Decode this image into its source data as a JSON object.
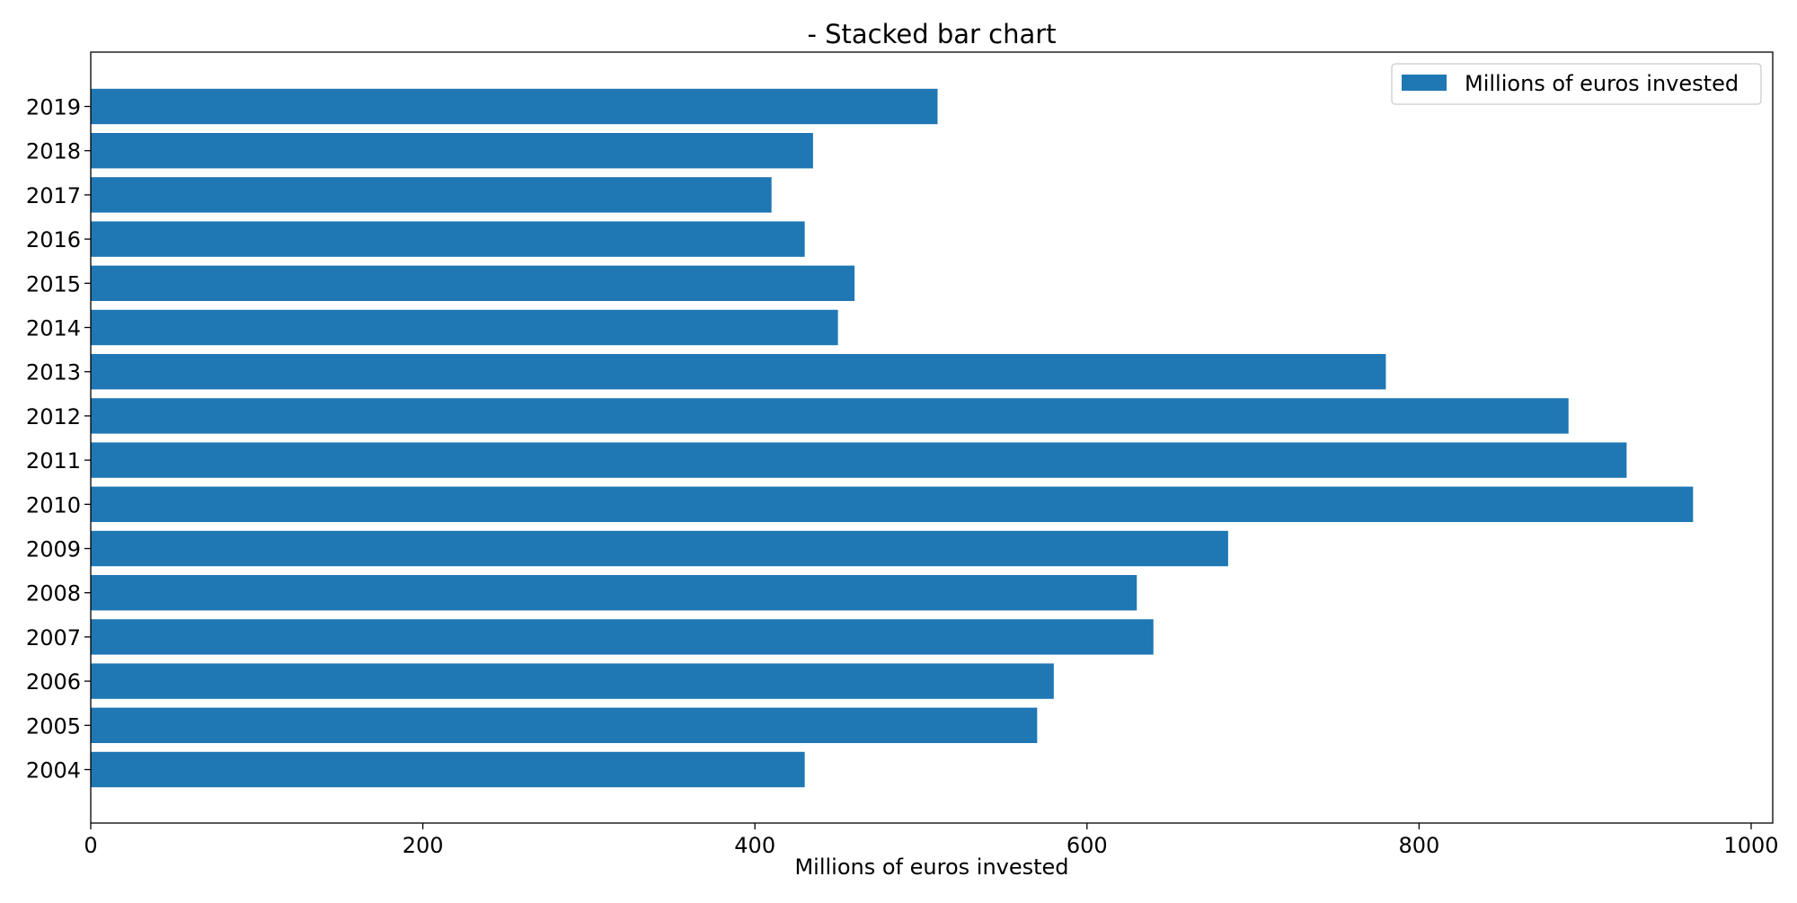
{
  "chart_data": {
    "type": "bar",
    "orientation": "horizontal",
    "title": "- Stacked bar chart",
    "xlabel": "Millions of euros invested",
    "ylabel": "",
    "categories": [
      "2004",
      "2005",
      "2006",
      "2007",
      "2008",
      "2009",
      "2010",
      "2011",
      "2012",
      "2013",
      "2014",
      "2015",
      "2016",
      "2017",
      "2018",
      "2019"
    ],
    "series": [
      {
        "name": "Millions of euros invested",
        "color": "#1f77b4",
        "values": [
          430,
          570,
          580,
          640,
          630,
          685,
          965,
          925,
          890,
          780,
          450,
          460,
          430,
          410,
          435,
          510
        ]
      }
    ],
    "xlim": [
      0,
      1013
    ],
    "xticks": [
      0,
      200,
      400,
      600,
      800,
      1000
    ],
    "xtick_labels": [
      "0",
      "200",
      "400",
      "600",
      "800",
      "1000"
    ],
    "grid": false,
    "legend_position": "top-right"
  }
}
